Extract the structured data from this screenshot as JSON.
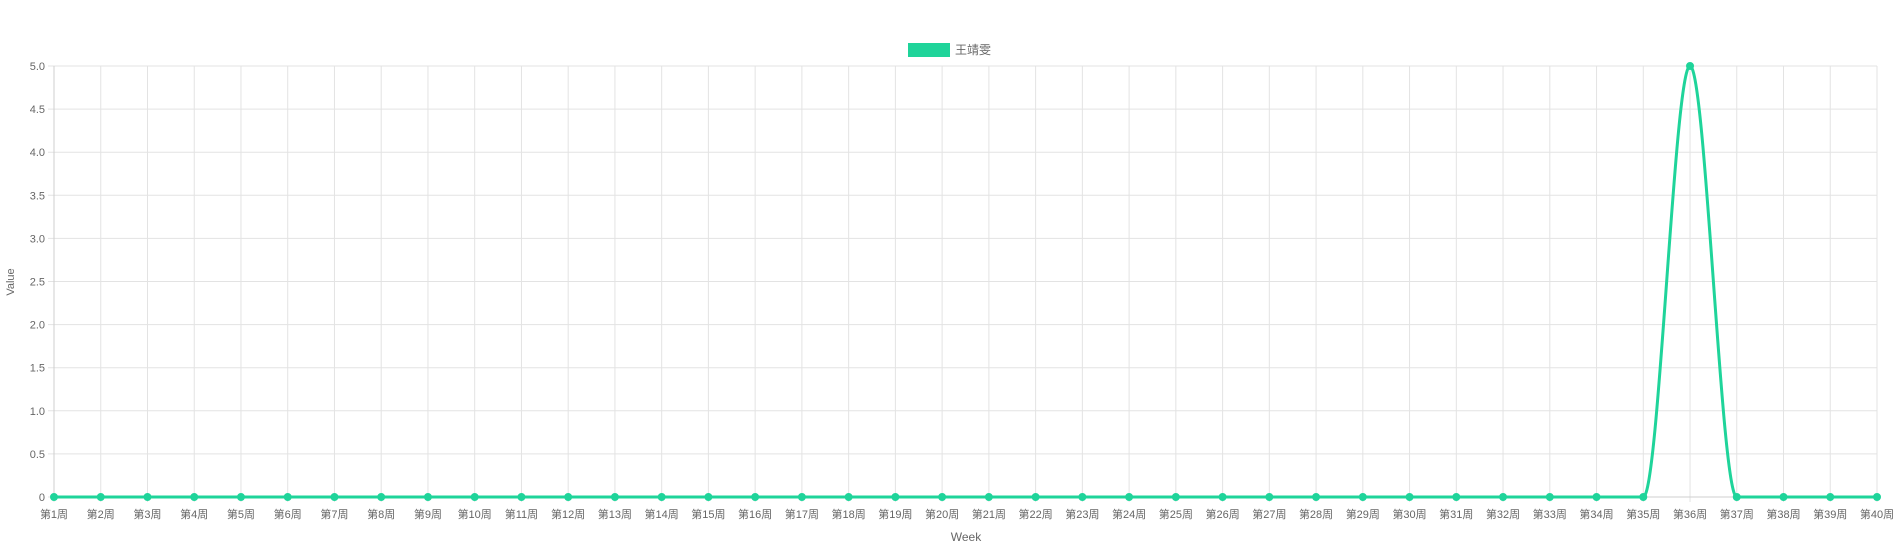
{
  "chart_data": {
    "type": "line",
    "title": "",
    "xlabel": "Week",
    "ylabel": "Value",
    "categories": [
      "第1周",
      "第2周",
      "第3周",
      "第4周",
      "第5周",
      "第6周",
      "第7周",
      "第8周",
      "第9周",
      "第10周",
      "第11周",
      "第12周",
      "第13周",
      "第14周",
      "第15周",
      "第16周",
      "第17周",
      "第18周",
      "第19周",
      "第20周",
      "第21周",
      "第22周",
      "第23周",
      "第24周",
      "第25周",
      "第26周",
      "第27周",
      "第28周",
      "第29周",
      "第30周",
      "第31周",
      "第32周",
      "第33周",
      "第34周",
      "第35周",
      "第36周",
      "第37周",
      "第38周",
      "第39周",
      "第40周"
    ],
    "series": [
      {
        "name": "王靖雯",
        "color": "#1fd49a",
        "values": [
          0,
          0,
          0,
          0,
          0,
          0,
          0,
          0,
          0,
          0,
          0,
          0,
          0,
          0,
          0,
          0,
          0,
          0,
          0,
          0,
          0,
          0,
          0,
          0,
          0,
          0,
          0,
          0,
          0,
          0,
          0,
          0,
          0,
          0,
          0,
          5,
          0,
          0,
          0,
          0
        ]
      }
    ],
    "ylim": [
      0,
      5
    ],
    "yticks": [
      "0",
      "0.5",
      "1.0",
      "1.5",
      "2.0",
      "2.5",
      "3.0",
      "3.5",
      "4.0",
      "4.5",
      "5.0"
    ],
    "grid": true,
    "legend_position": "top-center",
    "curve": "smooth"
  }
}
